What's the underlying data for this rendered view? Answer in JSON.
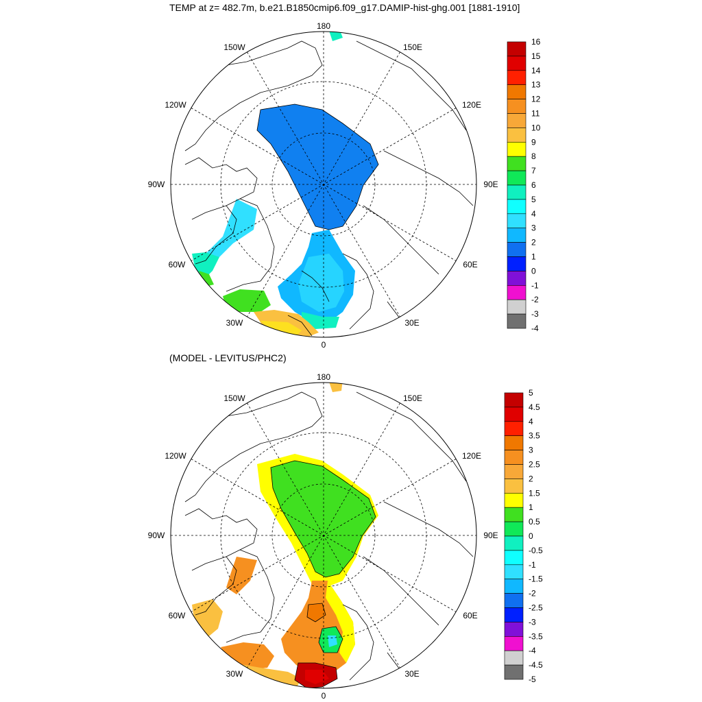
{
  "top_panel": {
    "title": "TEMP at z= 482.7m, b.e21.B1850cmip6.f09_g17.DAMIP-hist-ghg.001 [1881-1910]",
    "longitude_labels": {
      "lon180": "180",
      "lon150W": "150W",
      "lon150E": "150E",
      "lon120W": "120W",
      "lon120E": "120E",
      "lon90W": "90W",
      "lon90E": "90E",
      "lon60W": "60W",
      "lon60E": "60E",
      "lon30W": "30W",
      "lon30E": "30E",
      "lon0": "0"
    },
    "colorbar": {
      "labels": [
        "16",
        "15",
        "14",
        "13",
        "12",
        "11",
        "10",
        "9",
        "8",
        "7",
        "6",
        "5",
        "4",
        "3",
        "2",
        "1",
        "0",
        "-1",
        "-2",
        "-3",
        "-4"
      ],
      "colors": [
        "#c40000",
        "#e00000",
        "#ff2000",
        "#f07800",
        "#f69020",
        "#f8a838",
        "#fac040",
        "#ffff00",
        "#40e020",
        "#10e858",
        "#10f0c0",
        "#10ffff",
        "#30e0ff",
        "#10b8ff",
        "#1070f0",
        "#0020ff",
        "#8010d8",
        "#f010d0",
        "#d0d0d0",
        "#707070"
      ]
    }
  },
  "bottom_panel": {
    "title": "(MODEL - LEVITUS/PHC2)",
    "longitude_labels": {
      "lon180": "180",
      "lon150W": "150W",
      "lon150E": "150E",
      "lon120W": "120W",
      "lon120E": "120E",
      "lon90W": "90W",
      "lon90E": "90E",
      "lon60W": "60W",
      "lon60E": "60E",
      "lon30W": "30W",
      "lon30E": "30E",
      "lon0": "0"
    },
    "colorbar": {
      "labels": [
        "5",
        "4.5",
        "4",
        "3.5",
        "3",
        "2.5",
        "2",
        "1.5",
        "1",
        "0.5",
        "0",
        "-0.5",
        "-1",
        "-1.5",
        "-2",
        "-2.5",
        "-3",
        "-3.5",
        "-4",
        "-4.5",
        "-5"
      ],
      "colors": [
        "#c40000",
        "#e00000",
        "#ff2000",
        "#f07800",
        "#f69020",
        "#f8a838",
        "#fac040",
        "#ffff00",
        "#40e020",
        "#10e858",
        "#10f0c0",
        "#10ffff",
        "#30e0ff",
        "#10b8ff",
        "#1070f0",
        "#0020ff",
        "#8010d8",
        "#f010d0",
        "#d0d0d0",
        "#707070"
      ]
    }
  },
  "colors": {
    "shelf_blue": "#1080f0",
    "atlantic_cyan": "#10b8ff",
    "anomaly_green": "#40e020",
    "anomaly_yellow": "#ffff00",
    "anomaly_orange": "#f69020",
    "anomaly_red": "#c40000"
  }
}
